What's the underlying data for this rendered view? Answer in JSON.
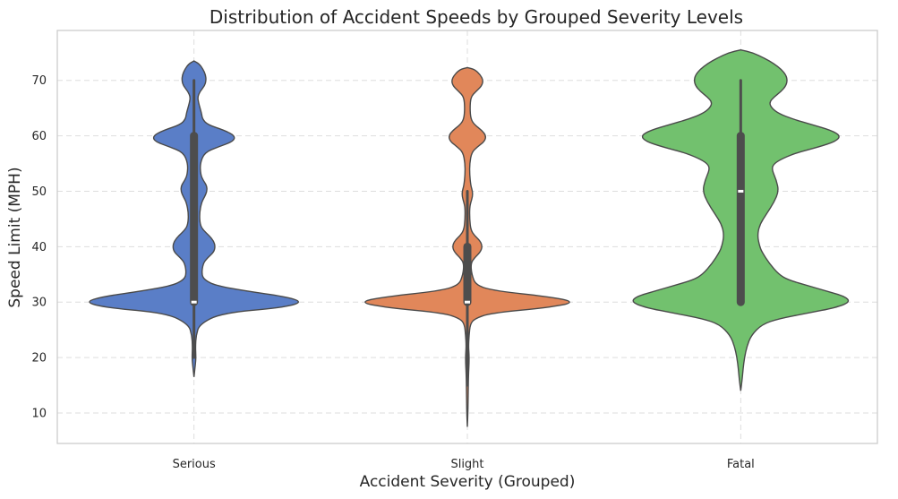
{
  "chart_data": {
    "type": "violin",
    "title": "Distribution of Accident Speeds by Grouped Severity Levels",
    "xlabel": "Accident Severity (Grouped)",
    "ylabel": "Speed Limit (MPH)",
    "ylim": [
      4.5,
      79
    ],
    "yticks": [
      10,
      20,
      30,
      40,
      50,
      60,
      70
    ],
    "grid": true,
    "categories": [
      "Serious",
      "Slight",
      "Fatal"
    ],
    "series": [
      {
        "category": "Serious",
        "color": "#5a7ec7",
        "density": [
          [
            16.5,
            0
          ],
          [
            18,
            0.3
          ],
          [
            19.5,
            0.6
          ],
          [
            20.5,
            0.6
          ],
          [
            22,
            0.5
          ],
          [
            24,
            0.7
          ],
          [
            26,
            1.8
          ],
          [
            28,
            9
          ],
          [
            29,
            29
          ],
          [
            30,
            36
          ],
          [
            31,
            30
          ],
          [
            32,
            17
          ],
          [
            33,
            7
          ],
          [
            34,
            3.5
          ],
          [
            35,
            2.5
          ],
          [
            37,
            3
          ],
          [
            38,
            4.5
          ],
          [
            39,
            6.5
          ],
          [
            40,
            7
          ],
          [
            41,
            6.5
          ],
          [
            42,
            5
          ],
          [
            43,
            3
          ],
          [
            44,
            2
          ],
          [
            46,
            1.8
          ],
          [
            48,
            2.5
          ],
          [
            49,
            3.5
          ],
          [
            50,
            4.3
          ],
          [
            51,
            4.2
          ],
          [
            52,
            3
          ],
          [
            53,
            2.2
          ],
          [
            55,
            2
          ],
          [
            57,
            3.5
          ],
          [
            58,
            8
          ],
          [
            59,
            13
          ],
          [
            60,
            13.5
          ],
          [
            61,
            10
          ],
          [
            62,
            4.5
          ],
          [
            63,
            2.8
          ],
          [
            64,
            2.5
          ],
          [
            65,
            2
          ],
          [
            66,
            1.5
          ],
          [
            67,
            1.2
          ],
          [
            68,
            2
          ],
          [
            69,
            3.5
          ],
          [
            70,
            4
          ],
          [
            71,
            3.8
          ],
          [
            72,
            3
          ],
          [
            73,
            1.7
          ],
          [
            73.5,
            0
          ]
        ],
        "quartiles": [
          30,
          30,
          60
        ],
        "whiskers": [
          20,
          70
        ]
      },
      {
        "category": "Slight",
        "color": "#e1875a",
        "density": [
          [
            7.5,
            0
          ],
          [
            10,
            0.2
          ],
          [
            14,
            0.3
          ],
          [
            17,
            0.4
          ],
          [
            19,
            0.6
          ],
          [
            20.5,
            0.6
          ],
          [
            22,
            0.4
          ],
          [
            24,
            0.6
          ],
          [
            26,
            1
          ],
          [
            27,
            2.5
          ],
          [
            28,
            8
          ],
          [
            29,
            28
          ],
          [
            30,
            38
          ],
          [
            31,
            28
          ],
          [
            32,
            10
          ],
          [
            33,
            3
          ],
          [
            35,
            1.5
          ],
          [
            37,
            1.2
          ],
          [
            38,
            2.5
          ],
          [
            39,
            4.5
          ],
          [
            40,
            5.2
          ],
          [
            41,
            4.5
          ],
          [
            42,
            2.5
          ],
          [
            43,
            1.2
          ],
          [
            45,
            0.8
          ],
          [
            47,
            0.8
          ],
          [
            48,
            1.2
          ],
          [
            49,
            1.8
          ],
          [
            50,
            1.8
          ],
          [
            51,
            1.2
          ],
          [
            53,
            0.8
          ],
          [
            55,
            0.8
          ],
          [
            57,
            1.5
          ],
          [
            58,
            3.5
          ],
          [
            59,
            6
          ],
          [
            60,
            6.5
          ],
          [
            61,
            5
          ],
          [
            62,
            2.5
          ],
          [
            63,
            1.2
          ],
          [
            65,
            0.9
          ],
          [
            67,
            1.2
          ],
          [
            68,
            3
          ],
          [
            69,
            5
          ],
          [
            70,
            5.5
          ],
          [
            71,
            4.5
          ],
          [
            72,
            2.5
          ],
          [
            72.3,
            0
          ]
        ],
        "quartiles": [
          30,
          30,
          40
        ],
        "whiskers": [
          15,
          50
        ]
      },
      {
        "category": "Fatal",
        "color": "#72c16e",
        "density": [
          [
            14,
            0
          ],
          [
            16,
            0.3
          ],
          [
            18,
            0.5
          ],
          [
            20,
            0.8
          ],
          [
            22,
            1.3
          ],
          [
            24,
            2.2
          ],
          [
            26,
            4.5
          ],
          [
            27,
            8
          ],
          [
            28,
            14
          ],
          [
            29,
            20
          ],
          [
            30,
            23
          ],
          [
            31,
            22
          ],
          [
            32,
            18
          ],
          [
            33,
            14
          ],
          [
            34,
            10
          ],
          [
            35,
            8
          ],
          [
            37,
            6
          ],
          [
            39,
            4.5
          ],
          [
            40,
            4
          ],
          [
            42,
            3.5
          ],
          [
            44,
            4
          ],
          [
            46,
            5.5
          ],
          [
            48,
            7
          ],
          [
            50,
            8
          ],
          [
            52,
            7.5
          ],
          [
            54,
            6.5
          ],
          [
            55,
            7
          ],
          [
            56,
            9
          ],
          [
            57,
            12
          ],
          [
            58,
            16.5
          ],
          [
            59,
            20
          ],
          [
            60,
            21
          ],
          [
            61,
            19
          ],
          [
            62,
            15
          ],
          [
            63,
            11
          ],
          [
            64,
            8
          ],
          [
            65,
            6.5
          ],
          [
            66,
            6
          ],
          [
            67,
            7
          ],
          [
            68,
            8.5
          ],
          [
            69,
            9.5
          ],
          [
            70,
            9.8
          ],
          [
            71,
            9.5
          ],
          [
            72,
            8.5
          ],
          [
            73,
            7
          ],
          [
            74,
            5
          ],
          [
            75,
            2.5
          ],
          [
            75.5,
            0
          ]
        ],
        "quartiles": [
          30,
          50,
          60
        ],
        "whiskers": [
          30,
          70
        ]
      }
    ]
  }
}
